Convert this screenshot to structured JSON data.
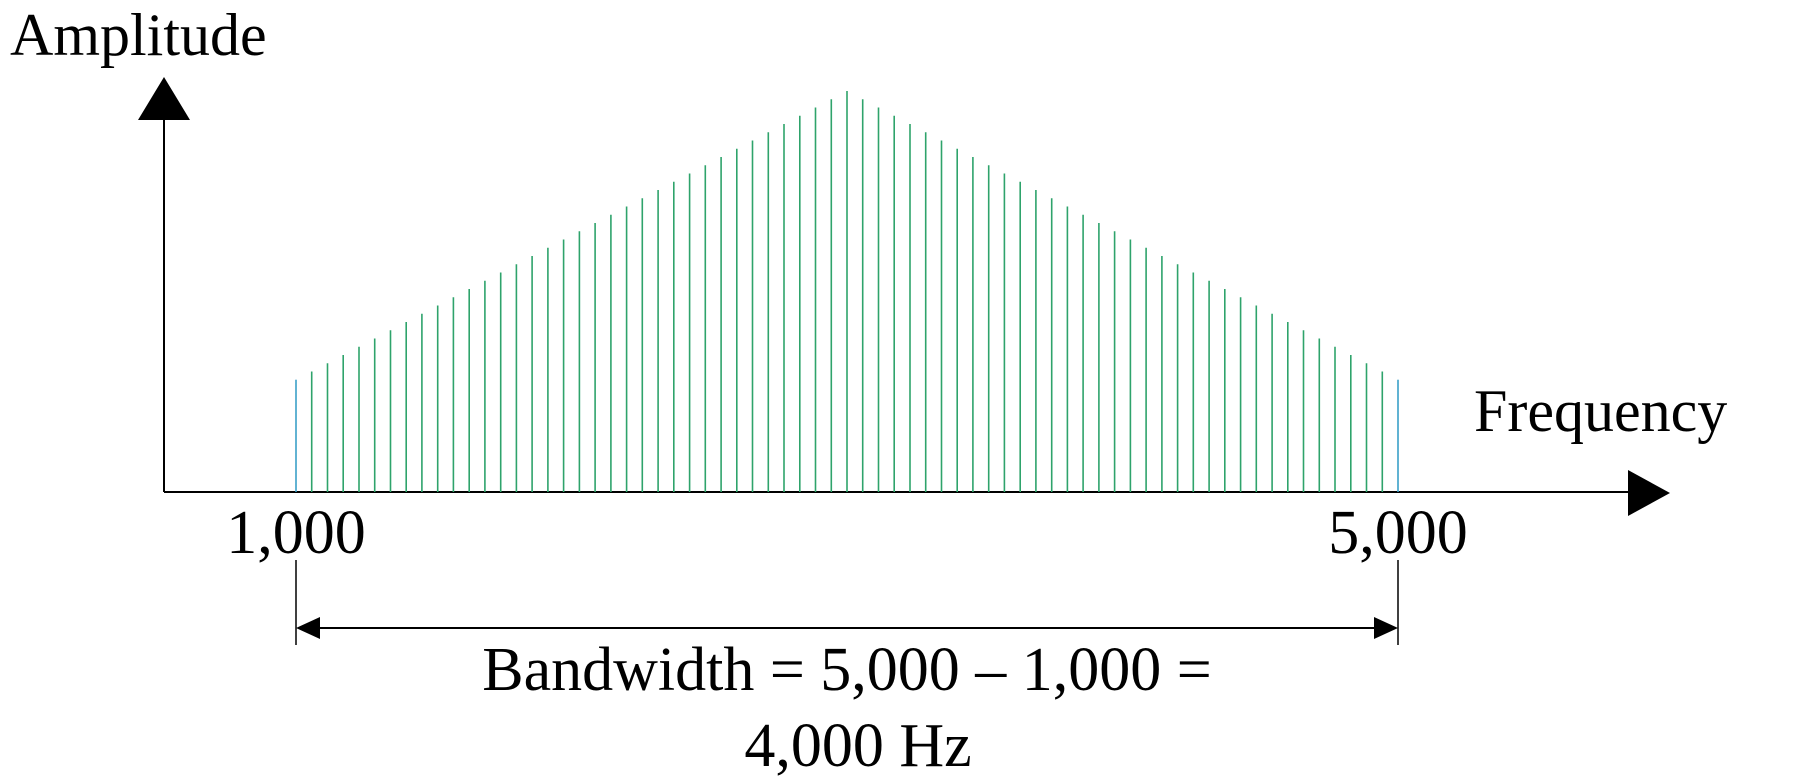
{
  "axes": {
    "y_label": "Amplitude",
    "x_label": "Frequency"
  },
  "ticks": {
    "start": "1,000",
    "end": "5,000"
  },
  "bandwidth": {
    "line1": "Bandwidth = 5,000 – 1,000 =",
    "line2": "4,000 Hz"
  },
  "spectrum": {
    "f_start": 1000,
    "f_end": 5000,
    "f_peak": 3000,
    "line_count": 71,
    "relative_amplitude_edges": 0.28,
    "relative_amplitude_peak": 1.0,
    "line_color": "#2ea36b",
    "edge_line_color": "#3aa0c8"
  },
  "colors": {
    "axis": "#000000",
    "text": "#000000"
  }
}
